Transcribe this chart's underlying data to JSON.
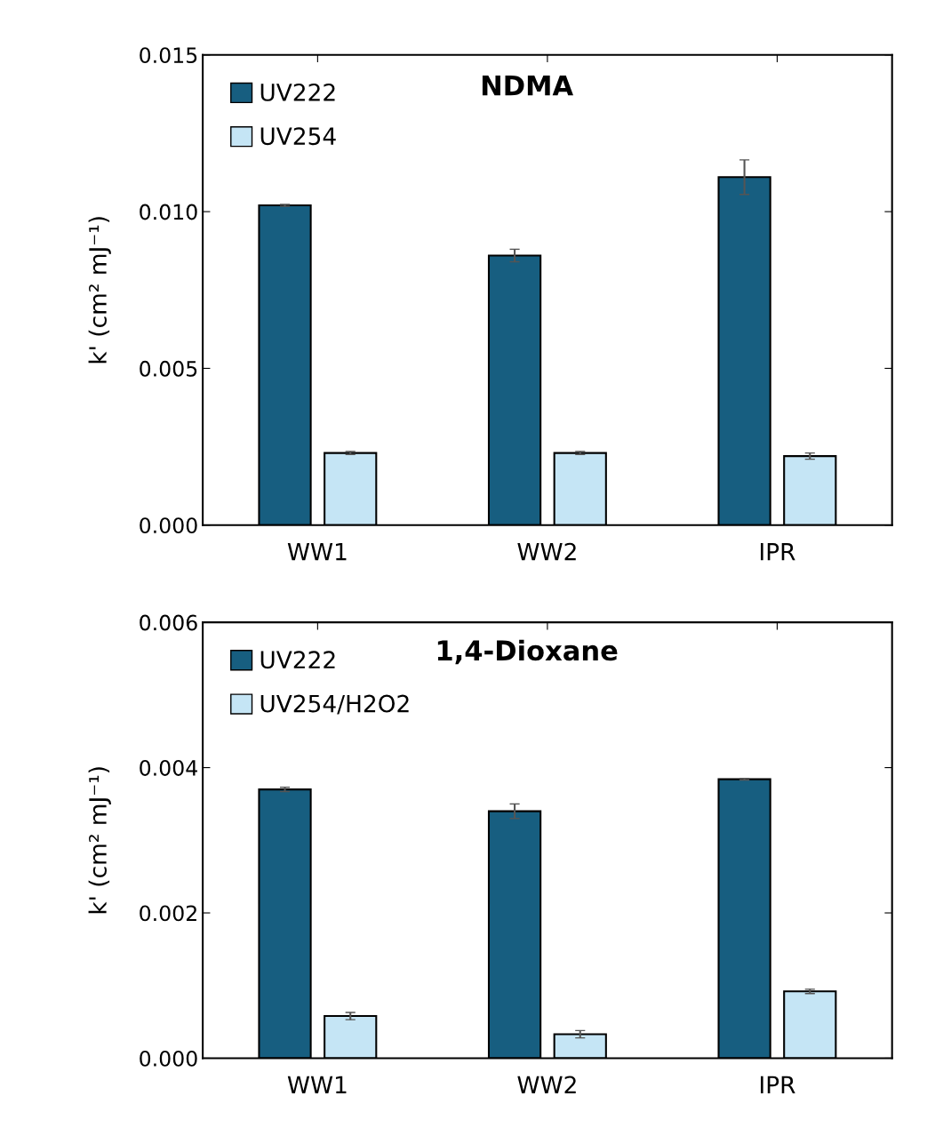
{
  "chart_data": [
    {
      "type": "bar",
      "title": "NDMA",
      "ylabel": "k' (cm² mJ⁻¹)",
      "categories": [
        "WW1",
        "WW2",
        "IPR"
      ],
      "series": [
        {
          "name": "UV222",
          "color": "#175e80",
          "values": [
            0.0102,
            0.0086,
            0.0111
          ],
          "errors": [
            3e-05,
            0.0002,
            0.00055
          ]
        },
        {
          "name": "UV254",
          "color": "#c5e5f5",
          "values": [
            0.0023,
            0.0023,
            0.0022
          ],
          "errors": [
            5e-05,
            5e-05,
            0.0001
          ]
        }
      ],
      "ylim": [
        0,
        0.015
      ],
      "yticks": [
        {
          "value": 0,
          "label": "0.000"
        },
        {
          "value": 0.005,
          "label": "0.005"
        },
        {
          "value": 0.01,
          "label": "0.010"
        },
        {
          "value": 0.015,
          "label": "0.015"
        }
      ],
      "grid": false,
      "legend": "top left"
    },
    {
      "type": "bar",
      "title": "1,4-Dioxane",
      "ylabel": "k' (cm² mJ⁻¹)",
      "categories": [
        "WW1",
        "WW2",
        "IPR"
      ],
      "series": [
        {
          "name": "UV222",
          "color": "#175e80",
          "values": [
            0.0037,
            0.0034,
            0.00384
          ],
          "errors": [
            3e-05,
            0.0001,
            1e-05
          ]
        },
        {
          "name": "UV254/H2O2",
          "color": "#c5e5f5",
          "values": [
            0.00058,
            0.00033,
            0.00092
          ],
          "errors": [
            5e-05,
            5e-05,
            3e-05
          ]
        }
      ],
      "ylim": [
        0,
        0.006
      ],
      "yticks": [
        {
          "value": 0,
          "label": "0.000"
        },
        {
          "value": 0.002,
          "label": "0.002"
        },
        {
          "value": 0.004,
          "label": "0.004"
        },
        {
          "value": 0.006,
          "label": "0.006"
        }
      ],
      "grid": false,
      "legend": "top left"
    }
  ]
}
